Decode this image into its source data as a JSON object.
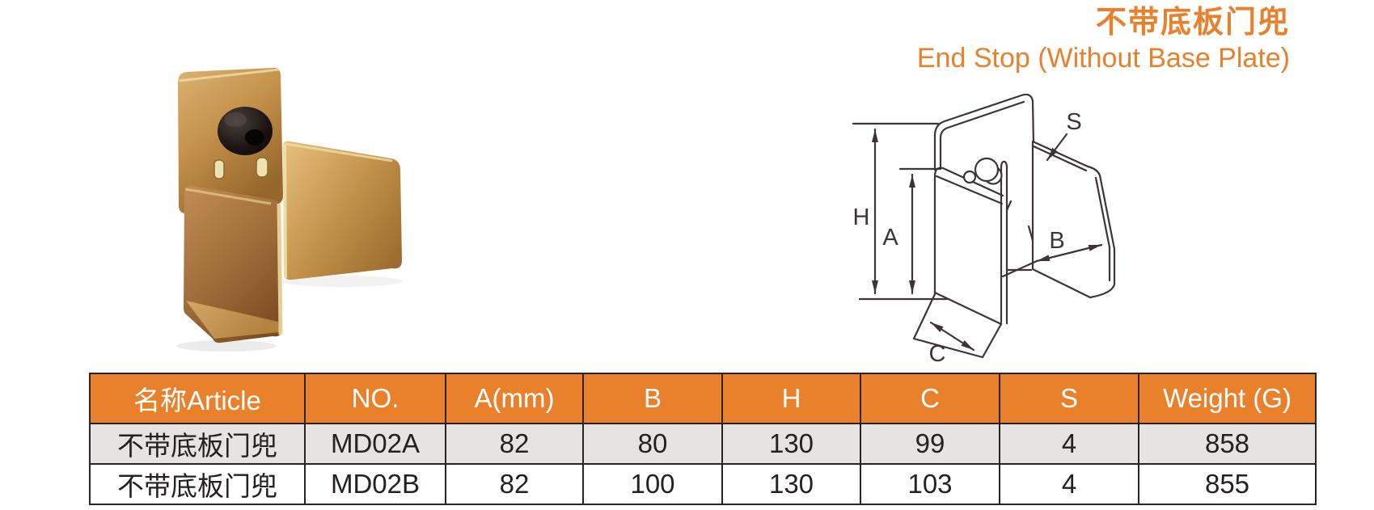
{
  "title": {
    "zh": "不带底板门兜",
    "en": "End Stop (Without Base Plate)"
  },
  "diagram": {
    "labels": {
      "h": "H",
      "a": "A",
      "s": "S",
      "b": "B",
      "c": "C"
    }
  },
  "table": {
    "headers": [
      "名称Article",
      "NO.",
      "A(mm)",
      "B",
      "H",
      "C",
      "S",
      "Weight (G)"
    ],
    "rows": [
      [
        "不带底板门兜",
        "MD02A",
        "82",
        "80",
        "130",
        "99",
        "4",
        "858"
      ],
      [
        "不带底板门兜",
        "MD02B",
        "82",
        "100",
        "130",
        "103",
        "4",
        "855"
      ]
    ]
  },
  "colors": {
    "accent": "#E8802C",
    "title_text": "#E8802C",
    "header_text": "#FFFFFF",
    "row_alt_bg": "#E5E4E2",
    "row_bg": "#FFFFFF",
    "table_border": "#2B2322",
    "line_art": "#3D3435"
  }
}
